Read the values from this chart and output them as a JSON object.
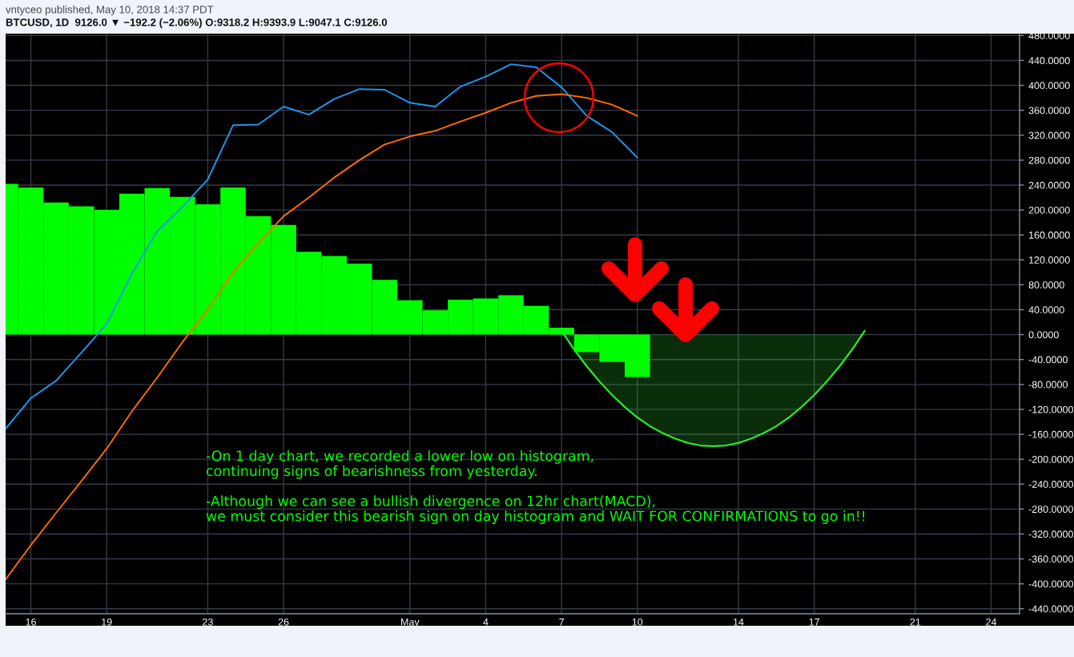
{
  "chart_data": {
    "type": "bar",
    "title": "vntyceo published, May 10, 2018 14:37 PDT",
    "subtitle": "BTCUSD, 1D  9126.0 ▼ −192.2 (−2.06%) O:9318.2 H:9393.9 L:9047.1 C:9126.0",
    "x": [
      "2018-04-15",
      "2018-04-16",
      "2018-04-17",
      "2018-04-18",
      "2018-04-19",
      "2018-04-20",
      "2018-04-21",
      "2018-04-22",
      "2018-04-23",
      "2018-04-24",
      "2018-04-25",
      "2018-04-26",
      "2018-04-27",
      "2018-04-28",
      "2018-04-29",
      "2018-04-30",
      "2018-05-01",
      "2018-05-02",
      "2018-05-03",
      "2018-05-04",
      "2018-05-05",
      "2018-05-06",
      "2018-05-07",
      "2018-05-08",
      "2018-05-09",
      "2018-05-10"
    ],
    "series": [
      {
        "color": "#00ff00",
        "values": [
          242,
          236,
          212,
          206,
          200,
          226,
          235,
          221,
          209,
          236,
          190,
          176,
          133,
          126,
          114,
          88,
          55,
          39,
          56,
          58,
          63,
          46,
          11,
          -28,
          -44,
          -68
        ]
      },
      {
        "type": "line",
        "color": "#1e96f0",
        "values": [
          -151,
          -102,
          -74,
          -29,
          17,
          98,
          166,
          205,
          249,
          336,
          337,
          366,
          353,
          378,
          394,
          393,
          372,
          366,
          398,
          414,
          434,
          429,
          397,
          351,
          325,
          284
        ]
      },
      {
        "type": "line",
        "color": "#ff6d00",
        "values": [
          -393,
          -338,
          -286,
          -235,
          -183,
          -123,
          -69,
          -12,
          40,
          100,
          147,
          190,
          220,
          252,
          280,
          305,
          318,
          327,
          342,
          356,
          372,
          383,
          386,
          380,
          369,
          351
        ]
      },
      {
        "type": "area",
        "color": "#2ee62e",
        "x": [
          "2018-05-07",
          "2018-05-07T12:00",
          "2018-05-08",
          "2018-05-08T12:00",
          "2018-05-09",
          "2018-05-09T12:00",
          "2018-05-10",
          "2018-05-10T12:00",
          "2018-05-11",
          "2018-05-11T12:00",
          "2018-05-12",
          "2018-05-12T12:00",
          "2018-05-13",
          "2018-05-13T12:00",
          "2018-05-14",
          "2018-05-14T12:00",
          "2018-05-15",
          "2018-05-15T12:00",
          "2018-05-16",
          "2018-05-16T12:00",
          "2018-05-17",
          "2018-05-17T12:00",
          "2018-05-18",
          "2018-05-18T12:00",
          "2018-05-19"
        ],
        "values": [
          6,
          -24,
          -51,
          -75,
          -97,
          -116,
          -133,
          -147,
          -158,
          -167,
          -174,
          -178,
          -179,
          -178,
          -174,
          -167,
          -158,
          -147,
          -133,
          -116,
          -97,
          -75,
          -51,
          -24,
          6
        ]
      }
    ],
    "xlim": [
      "2018-04-15",
      "2018-05-25T03:00"
    ],
    "xticks": [
      {
        "value": "2018-04-16",
        "label": "16"
      },
      {
        "value": "2018-04-19",
        "label": "19"
      },
      {
        "value": "2018-04-23",
        "label": "23"
      },
      {
        "value": "2018-04-26",
        "label": "26"
      },
      {
        "value": "2018-05-01",
        "label": "May"
      },
      {
        "value": "2018-05-04",
        "label": "4"
      },
      {
        "value": "2018-05-07",
        "label": "7"
      },
      {
        "value": "2018-05-10",
        "label": "10"
      },
      {
        "value": "2018-05-14",
        "label": "14"
      },
      {
        "value": "2018-05-17",
        "label": "17"
      },
      {
        "value": "2018-05-21",
        "label": "21"
      },
      {
        "value": "2018-05-24",
        "label": "24"
      }
    ],
    "ylim": [
      -448,
      483
    ],
    "yticks": [
      {
        "value": -440,
        "label": "-440.0000"
      },
      {
        "value": -400,
        "label": "-400.0000"
      },
      {
        "value": -360,
        "label": "-360.0000"
      },
      {
        "value": -320,
        "label": "-320.0000"
      },
      {
        "value": -280,
        "label": "-280.0000"
      },
      {
        "value": -240,
        "label": "-240.0000"
      },
      {
        "value": -200,
        "label": "-200.0000"
      },
      {
        "value": -160,
        "label": "-160.0000"
      },
      {
        "value": -120,
        "label": "-120.0000"
      },
      {
        "value": -80,
        "label": "-80.0000"
      },
      {
        "value": -40,
        "label": "-40.0000"
      },
      {
        "value": 0,
        "label": "0.0000"
      },
      {
        "value": 40,
        "label": "40.0000"
      },
      {
        "value": 80,
        "label": "80.0000"
      },
      {
        "value": 120,
        "label": "120.0000"
      },
      {
        "value": 160,
        "label": "160.0000"
      },
      {
        "value": 200,
        "label": "200.0000"
      },
      {
        "value": 240,
        "label": "240.0000"
      },
      {
        "value": 280,
        "label": "280.0000"
      },
      {
        "value": 320,
        "label": "320.0000"
      },
      {
        "value": 360,
        "label": "360.0000"
      },
      {
        "value": 400,
        "label": "400.0000"
      },
      {
        "value": 440,
        "label": "440.0000"
      },
      {
        "value": 480,
        "label": "480.0000"
      }
    ],
    "grid": true,
    "annotations": [
      "-On 1 day chart, we recorded a lower low on histogram,\ncontinuing signs of bearishness from yesterday.\n\n-Although we can see a bullish divergence on 12hr chart(MACD),\nwe must consider this bearish sign on day histogram and WAIT FOR CONFIRMATIONS to go in!!"
    ]
  }
}
